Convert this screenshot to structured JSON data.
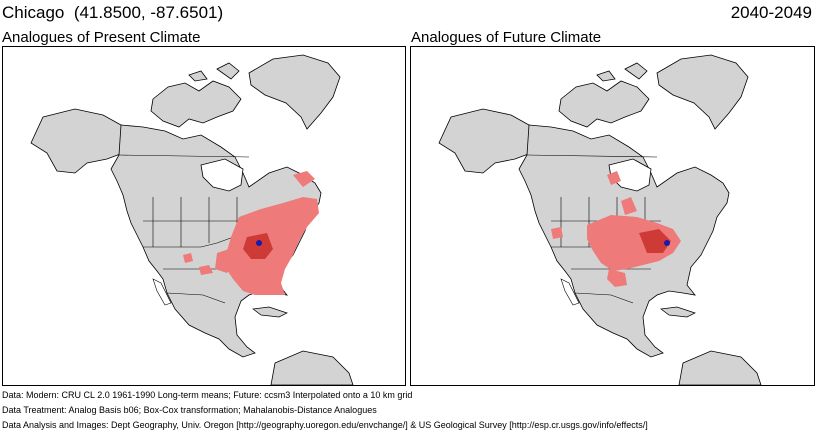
{
  "header": {
    "location": "Chicago  (41.8500, -87.6501)",
    "period": "2040-2049"
  },
  "maps": {
    "present": {
      "title": "Analogues of Present Climate"
    },
    "future": {
      "title": "Analogues of Future Climate"
    }
  },
  "colors": {
    "land": "#d3d3d3",
    "ocean": "#ffffff",
    "analogue": "#ee7a7a",
    "analogue_core": "#c8302c",
    "borders": "#000000",
    "location_marker": "#1a1aa8"
  },
  "footer": {
    "line1": "Data:  Modern: CRU CL 2.0 1961-1990 Long-term means; Future: ccsm3 Interpolated onto a 10 km grid",
    "line2": "Data Treatment:  Analog Basis b06; Box-Cox transformation; Mahalanobis-Distance Analogues",
    "line3": "Data Analysis and Images:  Dept Geography, Univ. Oregon [http://geography.uoregon.edu/envchange/] & US Geological Survey [http://esp.cr.usgs.gov/info/effects/]"
  }
}
